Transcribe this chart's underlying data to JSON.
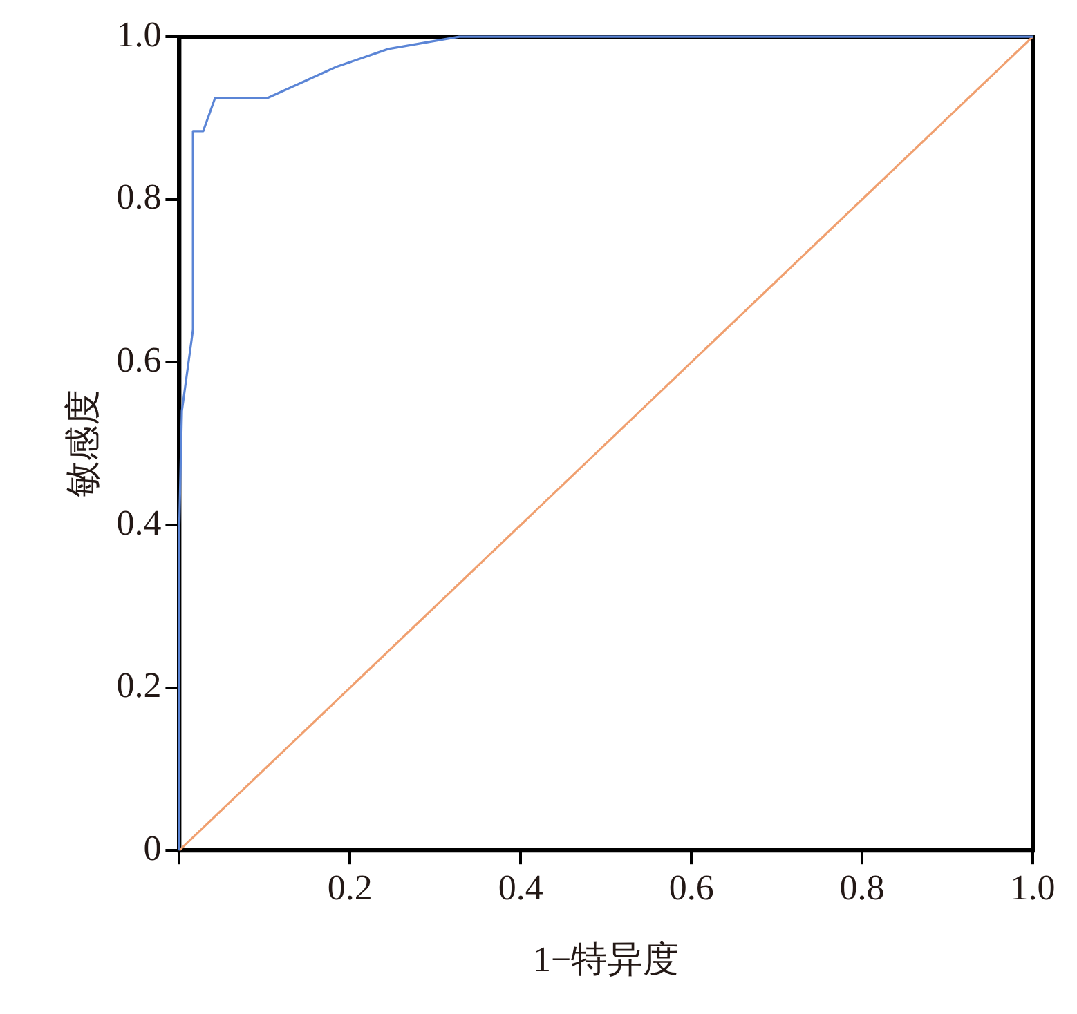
{
  "chart_data": {
    "type": "line",
    "xlabel": "1−特异度",
    "ylabel": "敏感度",
    "xlim": [
      0,
      1
    ],
    "ylim": [
      0,
      1
    ],
    "xticks": [
      {
        "value": 0,
        "label": null
      },
      0.2,
      0.4,
      0.6,
      0.8,
      {
        "value": 1,
        "label": "1.0"
      }
    ],
    "yticks": [
      0,
      0.2,
      0.4,
      0.6,
      0.8,
      {
        "value": 1,
        "label": "1.0"
      }
    ],
    "grid": false,
    "legend": false,
    "marker": "none",
    "line_style": "solid",
    "series": [
      {
        "color": "#5b85d6",
        "x": [
          0,
          0,
          0.003,
          0.016,
          0.016,
          0.028,
          0.042,
          0.104,
          0.184,
          0.245,
          0.328,
          1
        ],
        "values": [
          0,
          0.4,
          0.54,
          0.64,
          0.884,
          0.884,
          0.925,
          0.925,
          0.963,
          0.985,
          1,
          1
        ]
      },
      {
        "color": "#f0a070",
        "x": [
          0,
          1
        ],
        "values": [
          0,
          1
        ]
      }
    ]
  }
}
